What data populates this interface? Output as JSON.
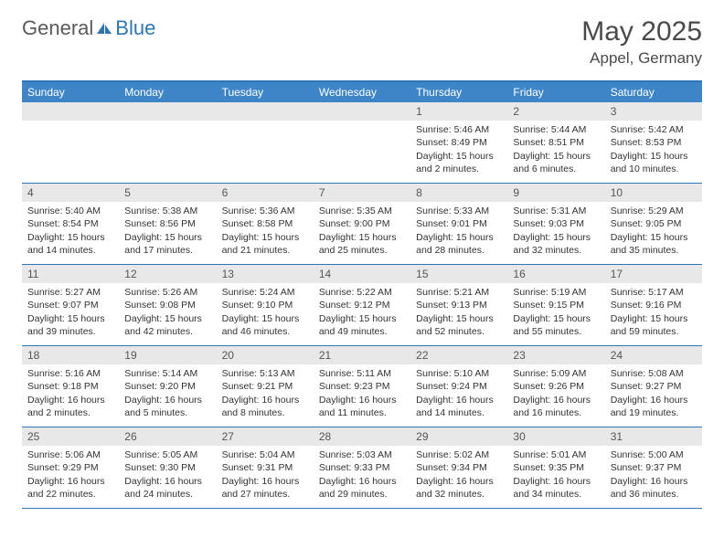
{
  "logo": {
    "text1": "General",
    "text2": "Blue"
  },
  "title": "May 2025",
  "location": "Appel, Germany",
  "colors": {
    "header_bar": "#3d85c6",
    "border": "#2e75b6",
    "daynum_bg": "#e8e8e8",
    "text": "#333333",
    "logo_gray": "#5a5a5a",
    "logo_blue": "#2e75b6"
  },
  "weekdays": [
    "Sunday",
    "Monday",
    "Tuesday",
    "Wednesday",
    "Thursday",
    "Friday",
    "Saturday"
  ],
  "weeks": [
    [
      {
        "n": "",
        "empty": true
      },
      {
        "n": "",
        "empty": true
      },
      {
        "n": "",
        "empty": true
      },
      {
        "n": "",
        "empty": true
      },
      {
        "n": "1",
        "sunrise": "Sunrise: 5:46 AM",
        "sunset": "Sunset: 8:49 PM",
        "dl1": "Daylight: 15 hours",
        "dl2": "and 2 minutes."
      },
      {
        "n": "2",
        "sunrise": "Sunrise: 5:44 AM",
        "sunset": "Sunset: 8:51 PM",
        "dl1": "Daylight: 15 hours",
        "dl2": "and 6 minutes."
      },
      {
        "n": "3",
        "sunrise": "Sunrise: 5:42 AM",
        "sunset": "Sunset: 8:53 PM",
        "dl1": "Daylight: 15 hours",
        "dl2": "and 10 minutes."
      }
    ],
    [
      {
        "n": "4",
        "sunrise": "Sunrise: 5:40 AM",
        "sunset": "Sunset: 8:54 PM",
        "dl1": "Daylight: 15 hours",
        "dl2": "and 14 minutes."
      },
      {
        "n": "5",
        "sunrise": "Sunrise: 5:38 AM",
        "sunset": "Sunset: 8:56 PM",
        "dl1": "Daylight: 15 hours",
        "dl2": "and 17 minutes."
      },
      {
        "n": "6",
        "sunrise": "Sunrise: 5:36 AM",
        "sunset": "Sunset: 8:58 PM",
        "dl1": "Daylight: 15 hours",
        "dl2": "and 21 minutes."
      },
      {
        "n": "7",
        "sunrise": "Sunrise: 5:35 AM",
        "sunset": "Sunset: 9:00 PM",
        "dl1": "Daylight: 15 hours",
        "dl2": "and 25 minutes."
      },
      {
        "n": "8",
        "sunrise": "Sunrise: 5:33 AM",
        "sunset": "Sunset: 9:01 PM",
        "dl1": "Daylight: 15 hours",
        "dl2": "and 28 minutes."
      },
      {
        "n": "9",
        "sunrise": "Sunrise: 5:31 AM",
        "sunset": "Sunset: 9:03 PM",
        "dl1": "Daylight: 15 hours",
        "dl2": "and 32 minutes."
      },
      {
        "n": "10",
        "sunrise": "Sunrise: 5:29 AM",
        "sunset": "Sunset: 9:05 PM",
        "dl1": "Daylight: 15 hours",
        "dl2": "and 35 minutes."
      }
    ],
    [
      {
        "n": "11",
        "sunrise": "Sunrise: 5:27 AM",
        "sunset": "Sunset: 9:07 PM",
        "dl1": "Daylight: 15 hours",
        "dl2": "and 39 minutes."
      },
      {
        "n": "12",
        "sunrise": "Sunrise: 5:26 AM",
        "sunset": "Sunset: 9:08 PM",
        "dl1": "Daylight: 15 hours",
        "dl2": "and 42 minutes."
      },
      {
        "n": "13",
        "sunrise": "Sunrise: 5:24 AM",
        "sunset": "Sunset: 9:10 PM",
        "dl1": "Daylight: 15 hours",
        "dl2": "and 46 minutes."
      },
      {
        "n": "14",
        "sunrise": "Sunrise: 5:22 AM",
        "sunset": "Sunset: 9:12 PM",
        "dl1": "Daylight: 15 hours",
        "dl2": "and 49 minutes."
      },
      {
        "n": "15",
        "sunrise": "Sunrise: 5:21 AM",
        "sunset": "Sunset: 9:13 PM",
        "dl1": "Daylight: 15 hours",
        "dl2": "and 52 minutes."
      },
      {
        "n": "16",
        "sunrise": "Sunrise: 5:19 AM",
        "sunset": "Sunset: 9:15 PM",
        "dl1": "Daylight: 15 hours",
        "dl2": "and 55 minutes."
      },
      {
        "n": "17",
        "sunrise": "Sunrise: 5:17 AM",
        "sunset": "Sunset: 9:16 PM",
        "dl1": "Daylight: 15 hours",
        "dl2": "and 59 minutes."
      }
    ],
    [
      {
        "n": "18",
        "sunrise": "Sunrise: 5:16 AM",
        "sunset": "Sunset: 9:18 PM",
        "dl1": "Daylight: 16 hours",
        "dl2": "and 2 minutes."
      },
      {
        "n": "19",
        "sunrise": "Sunrise: 5:14 AM",
        "sunset": "Sunset: 9:20 PM",
        "dl1": "Daylight: 16 hours",
        "dl2": "and 5 minutes."
      },
      {
        "n": "20",
        "sunrise": "Sunrise: 5:13 AM",
        "sunset": "Sunset: 9:21 PM",
        "dl1": "Daylight: 16 hours",
        "dl2": "and 8 minutes."
      },
      {
        "n": "21",
        "sunrise": "Sunrise: 5:11 AM",
        "sunset": "Sunset: 9:23 PM",
        "dl1": "Daylight: 16 hours",
        "dl2": "and 11 minutes."
      },
      {
        "n": "22",
        "sunrise": "Sunrise: 5:10 AM",
        "sunset": "Sunset: 9:24 PM",
        "dl1": "Daylight: 16 hours",
        "dl2": "and 14 minutes."
      },
      {
        "n": "23",
        "sunrise": "Sunrise: 5:09 AM",
        "sunset": "Sunset: 9:26 PM",
        "dl1": "Daylight: 16 hours",
        "dl2": "and 16 minutes."
      },
      {
        "n": "24",
        "sunrise": "Sunrise: 5:08 AM",
        "sunset": "Sunset: 9:27 PM",
        "dl1": "Daylight: 16 hours",
        "dl2": "and 19 minutes."
      }
    ],
    [
      {
        "n": "25",
        "sunrise": "Sunrise: 5:06 AM",
        "sunset": "Sunset: 9:29 PM",
        "dl1": "Daylight: 16 hours",
        "dl2": "and 22 minutes."
      },
      {
        "n": "26",
        "sunrise": "Sunrise: 5:05 AM",
        "sunset": "Sunset: 9:30 PM",
        "dl1": "Daylight: 16 hours",
        "dl2": "and 24 minutes."
      },
      {
        "n": "27",
        "sunrise": "Sunrise: 5:04 AM",
        "sunset": "Sunset: 9:31 PM",
        "dl1": "Daylight: 16 hours",
        "dl2": "and 27 minutes."
      },
      {
        "n": "28",
        "sunrise": "Sunrise: 5:03 AM",
        "sunset": "Sunset: 9:33 PM",
        "dl1": "Daylight: 16 hours",
        "dl2": "and 29 minutes."
      },
      {
        "n": "29",
        "sunrise": "Sunrise: 5:02 AM",
        "sunset": "Sunset: 9:34 PM",
        "dl1": "Daylight: 16 hours",
        "dl2": "and 32 minutes."
      },
      {
        "n": "30",
        "sunrise": "Sunrise: 5:01 AM",
        "sunset": "Sunset: 9:35 PM",
        "dl1": "Daylight: 16 hours",
        "dl2": "and 34 minutes."
      },
      {
        "n": "31",
        "sunrise": "Sunrise: 5:00 AM",
        "sunset": "Sunset: 9:37 PM",
        "dl1": "Daylight: 16 hours",
        "dl2": "and 36 minutes."
      }
    ]
  ]
}
